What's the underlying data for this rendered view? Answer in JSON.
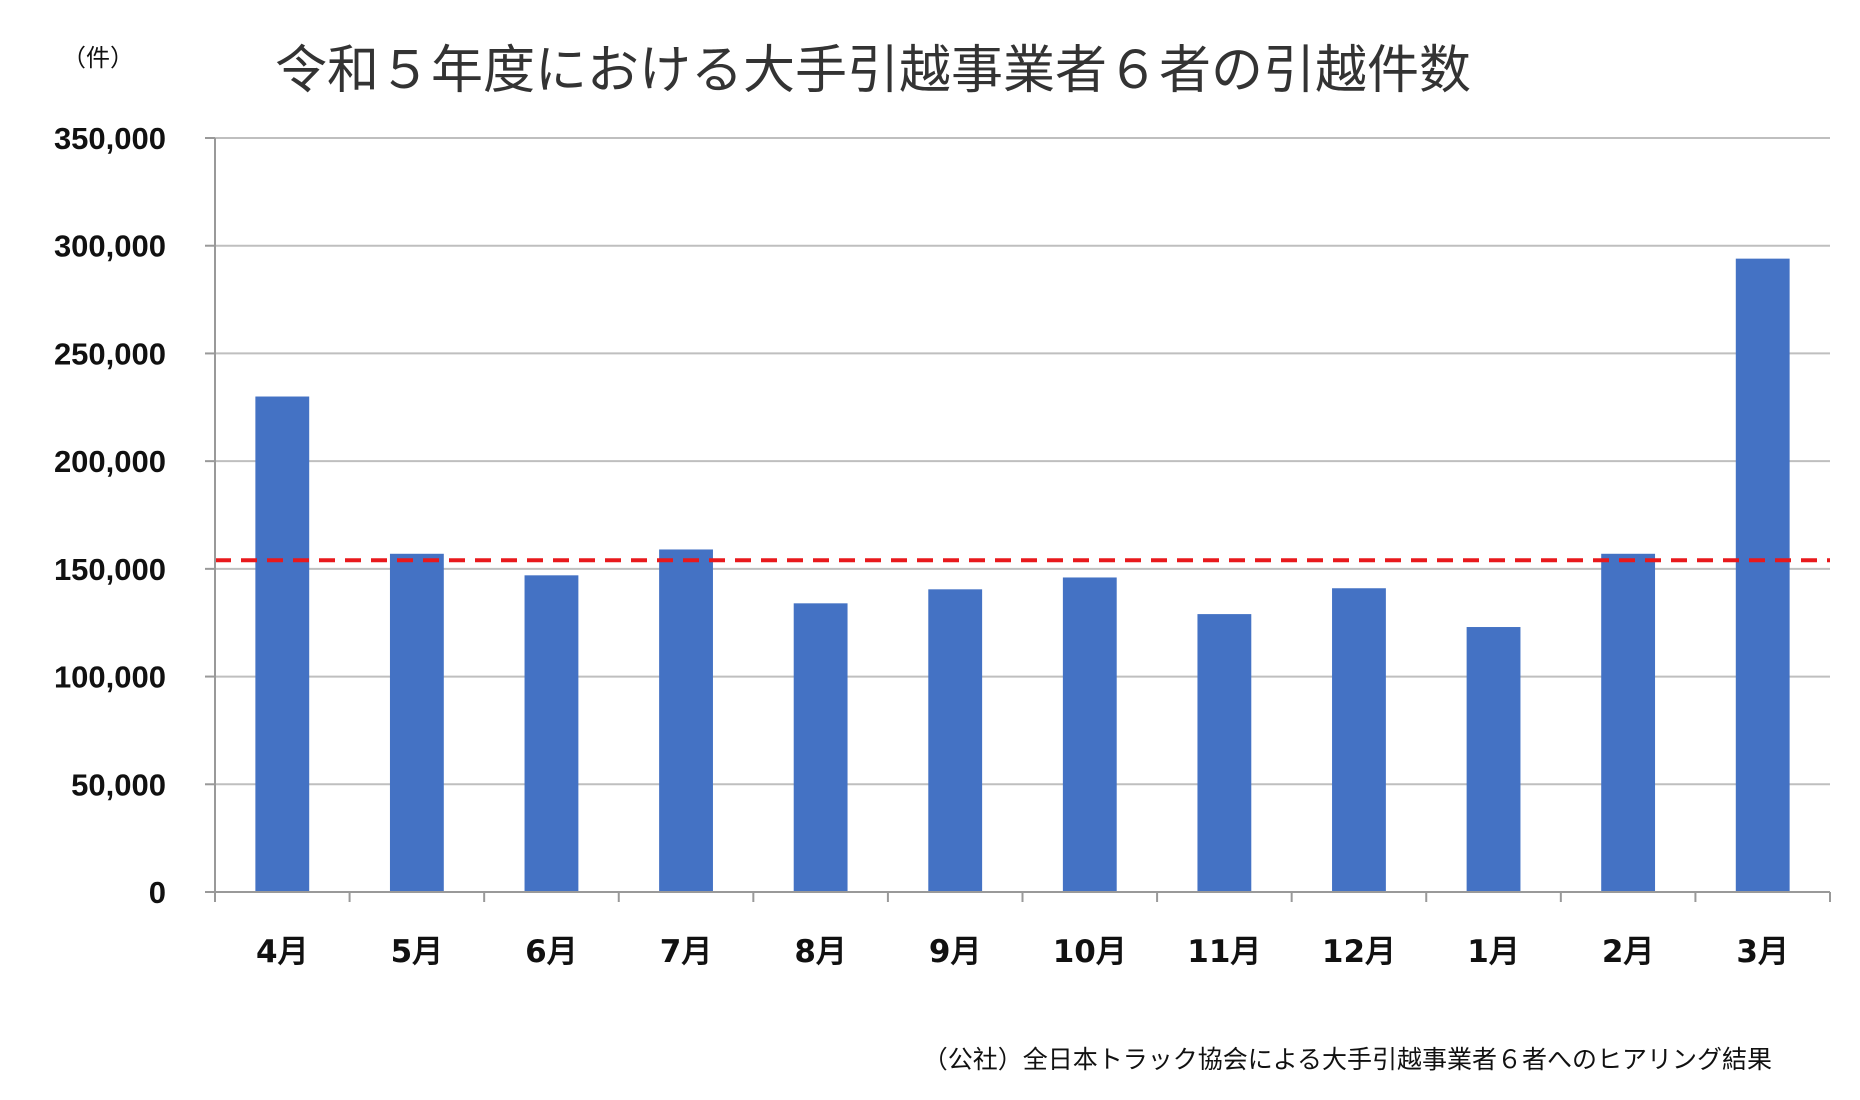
{
  "chart_data": {
    "type": "bar",
    "title": "令和５年度における大手引越事業者６者の引越件数",
    "unit_label": "（件）",
    "source_note": "（公社）全日本トラック協会による大手引越事業者６者へのヒアリング結果",
    "categories": [
      "4月",
      "5月",
      "6月",
      "7月",
      "8月",
      "9月",
      "10月",
      "11月",
      "12月",
      "1月",
      "2月",
      "3月"
    ],
    "values": [
      230000,
      157000,
      147000,
      159000,
      134000,
      140500,
      146000,
      129000,
      141000,
      123000,
      157000,
      294000
    ],
    "ylim": [
      0,
      350000
    ],
    "yticks": [
      0,
      50000,
      100000,
      150000,
      200000,
      250000,
      300000,
      350000
    ],
    "ytick_labels": [
      "0",
      "50,000",
      "100,000",
      "150,000",
      "200,000",
      "250,000",
      "300,000",
      "350,000"
    ],
    "reference_line": {
      "value": 154000,
      "style": "dashed",
      "color": "#e8191c"
    },
    "grid": true,
    "bar_color": "#4472c4",
    "xlabel": "",
    "ylabel": ""
  }
}
